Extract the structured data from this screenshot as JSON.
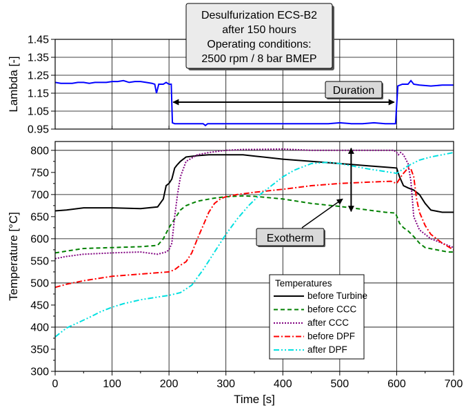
{
  "chart_data": [
    {
      "type": "line",
      "title_lines": [
        "Desulfurization ECS-B2",
        "after 150 hours",
        "Operating conditions:",
        "2500 rpm / 8 bar BMEP"
      ],
      "xlabel": "",
      "ylabel": "Lambda [-]",
      "xlim": [
        0,
        700
      ],
      "ylim": [
        0.95,
        1.45
      ],
      "yticks": [
        0.95,
        1.05,
        1.15,
        1.25,
        1.35,
        1.45
      ],
      "ytick_labels": [
        "0.95",
        "1.05",
        "1.15",
        "1.25",
        "1.35",
        "1.45"
      ],
      "grid": true,
      "annotation": "Duration",
      "duration_arrow": {
        "x_start": 205,
        "x_end": 598,
        "y": 1.1
      },
      "series": [
        {
          "color": "#0000ff",
          "x": [
            0,
            10,
            20,
            30,
            40,
            50,
            60,
            70,
            80,
            90,
            100,
            110,
            120,
            130,
            140,
            150,
            160,
            170,
            175,
            178,
            182,
            186,
            190,
            195,
            200,
            204,
            206,
            210,
            220,
            230,
            240,
            250,
            260,
            264,
            268,
            280,
            300,
            320,
            340,
            360,
            380,
            400,
            420,
            440,
            460,
            480,
            500,
            520,
            540,
            560,
            580,
            590,
            596,
            598,
            602,
            610,
            620,
            625,
            630,
            640,
            660,
            680,
            700
          ],
          "y": [
            1.21,
            1.205,
            1.205,
            1.205,
            1.21,
            1.21,
            1.205,
            1.21,
            1.21,
            1.21,
            1.215,
            1.215,
            1.22,
            1.21,
            1.215,
            1.215,
            1.21,
            1.205,
            1.2,
            1.15,
            1.2,
            1.2,
            1.2,
            1.21,
            1.2,
            1.2,
            0.985,
            0.98,
            0.98,
            0.98,
            0.98,
            0.98,
            0.98,
            0.97,
            0.98,
            0.98,
            0.98,
            0.98,
            0.98,
            0.98,
            0.98,
            0.98,
            0.98,
            0.98,
            0.98,
            0.98,
            0.985,
            0.98,
            0.98,
            0.985,
            0.98,
            0.98,
            0.98,
            0.98,
            1.19,
            1.2,
            1.2,
            1.22,
            1.2,
            1.195,
            1.19,
            1.195,
            1.195
          ]
        }
      ]
    },
    {
      "type": "line",
      "xlabel": "Time  [s]",
      "ylabel": "Temperature [°C]",
      "xlim": [
        0,
        700
      ],
      "ylim": [
        300,
        820
      ],
      "xticks": [
        0,
        100,
        200,
        300,
        400,
        500,
        600,
        700
      ],
      "xtick_labels": [
        "0",
        "100",
        "200",
        "300",
        "400",
        "500",
        "600",
        "700"
      ],
      "yticks": [
        300,
        350,
        400,
        450,
        500,
        550,
        600,
        650,
        700,
        750,
        800
      ],
      "ytick_labels": [
        "300",
        "350",
        "400",
        "450",
        "500",
        "550",
        "600",
        "650",
        "700",
        "750",
        "800"
      ],
      "grid": true,
      "annotation": "Exotherm",
      "exotherm_arrow": {
        "x": 520,
        "y_top": 800,
        "y_bottom": 665
      },
      "legend": {
        "title": "Temperatures",
        "placement": "lower-right"
      },
      "series": [
        {
          "name": "before Turbine",
          "color": "#000000",
          "dash": "solid",
          "x": [
            0,
            20,
            50,
            100,
            150,
            180,
            190,
            195,
            200,
            205,
            210,
            215,
            220,
            230,
            250,
            270,
            300,
            330,
            350,
            400,
            450,
            500,
            550,
            580,
            600,
            605,
            612,
            620,
            630,
            640,
            650,
            660,
            680,
            700
          ],
          "y": [
            663,
            665,
            670,
            670,
            668,
            672,
            690,
            720,
            725,
            735,
            760,
            768,
            775,
            785,
            788,
            790,
            790,
            790,
            787,
            780,
            775,
            770,
            765,
            762,
            760,
            740,
            720,
            715,
            710,
            700,
            680,
            665,
            660,
            660
          ]
        },
        {
          "name": "before CCC",
          "color": "#008000",
          "dash": "6,4",
          "x": [
            0,
            20,
            50,
            100,
            150,
            180,
            190,
            200,
            210,
            220,
            230,
            250,
            280,
            300,
            330,
            350,
            400,
            450,
            500,
            550,
            580,
            598,
            605,
            612,
            620,
            630,
            640,
            650,
            670,
            690,
            700
          ],
          "y": [
            568,
            572,
            578,
            580,
            582,
            585,
            600,
            625,
            645,
            665,
            675,
            685,
            692,
            695,
            697,
            696,
            690,
            680,
            673,
            665,
            660,
            658,
            635,
            625,
            618,
            605,
            590,
            580,
            575,
            570,
            570
          ]
        },
        {
          "name": "after CCC",
          "color": "#800080",
          "dash": "2,2",
          "x": [
            0,
            20,
            50,
            100,
            150,
            180,
            195,
            200,
            205,
            210,
            215,
            220,
            230,
            250,
            270,
            300,
            330,
            350,
            400,
            450,
            500,
            550,
            580,
            595,
            600,
            603,
            607,
            612,
            620,
            625,
            630,
            640,
            660,
            680,
            700
          ],
          "y": [
            555,
            560,
            565,
            568,
            570,
            565,
            570,
            575,
            590,
            650,
            700,
            740,
            775,
            790,
            795,
            800,
            802,
            802,
            803,
            800,
            800,
            800,
            800,
            800,
            795,
            790,
            795,
            790,
            770,
            730,
            650,
            620,
            600,
            590,
            580
          ]
        },
        {
          "name": "before DPF",
          "color": "#ff0000",
          "dash": "8,3,2,3",
          "x": [
            0,
            20,
            50,
            100,
            150,
            200,
            210,
            220,
            230,
            240,
            250,
            260,
            270,
            280,
            290,
            300,
            320,
            350,
            400,
            450,
            500,
            550,
            590,
            600,
            610,
            620,
            625,
            630,
            635,
            640,
            650,
            660,
            680,
            700
          ],
          "y": [
            490,
            497,
            505,
            515,
            520,
            525,
            530,
            540,
            548,
            568,
            600,
            630,
            660,
            680,
            690,
            695,
            700,
            705,
            712,
            720,
            725,
            728,
            730,
            725,
            745,
            760,
            758,
            740,
            690,
            660,
            630,
            610,
            590,
            575
          ]
        },
        {
          "name": "after DPF",
          "color": "#00e0e0",
          "dash": "8,3,2,3,2,3",
          "x": [
            0,
            10,
            20,
            40,
            60,
            80,
            100,
            120,
            150,
            180,
            200,
            220,
            240,
            260,
            280,
            300,
            320,
            340,
            360,
            380,
            400,
            420,
            450,
            480,
            500,
            520,
            550,
            580,
            600,
            620,
            640,
            660,
            680,
            700
          ],
          "y": [
            378,
            388,
            398,
            410,
            422,
            435,
            445,
            453,
            462,
            468,
            472,
            478,
            495,
            530,
            570,
            610,
            645,
            675,
            700,
            720,
            740,
            755,
            770,
            773,
            770,
            765,
            758,
            752,
            748,
            765,
            778,
            785,
            790,
            795
          ]
        }
      ]
    }
  ]
}
